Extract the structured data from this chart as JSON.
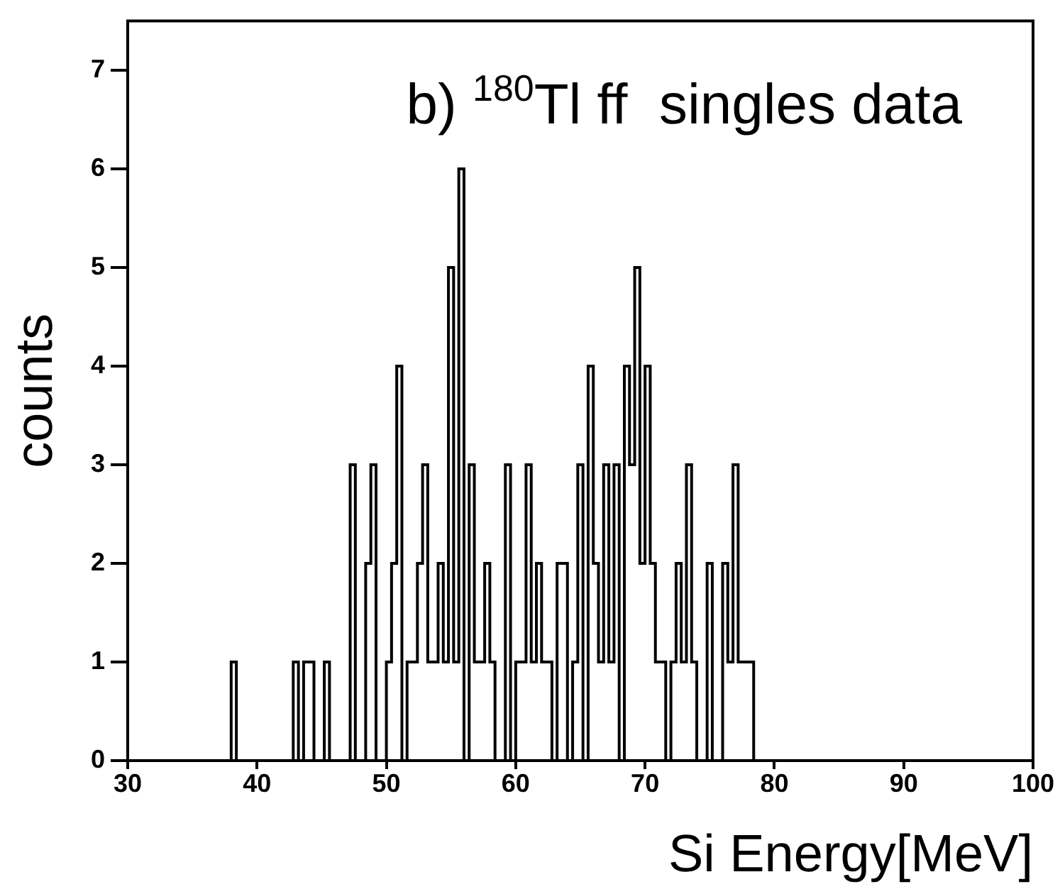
{
  "chart_data": {
    "type": "histogram",
    "title": "b) $^{180}$Tl ff  singles data",
    "xlabel": "Si Energy[MeV]",
    "ylabel": "counts",
    "bins": [
      37.6,
      38,
      38.4,
      38.8,
      39.2,
      39.6,
      40,
      40.4,
      40.8,
      41.2,
      41.6,
      42,
      42.4,
      42.8,
      43.2,
      43.6,
      44,
      44.4,
      44.8,
      45.2,
      45.6,
      46,
      46.4,
      46.8,
      47.2,
      47.6,
      48,
      48.4,
      48.8,
      49.2,
      49.6,
      50,
      50.4,
      50.8,
      51.2,
      51.6,
      52,
      52.4,
      52.8,
      53.2,
      53.6,
      54,
      54.4,
      54.8,
      55.2,
      55.6,
      56,
      56.4,
      56.8,
      57.2,
      57.6,
      58,
      58.4,
      58.8,
      59.2,
      59.6,
      60,
      60.4,
      60.8,
      61.2,
      61.6,
      62,
      62.4,
      62.8,
      63.2,
      63.6,
      64,
      64.4,
      64.8,
      65.2,
      65.6,
      66,
      66.4,
      66.8,
      67.2,
      67.6,
      68,
      68.4,
      68.8,
      69.2,
      69.6,
      70,
      70.4,
      70.8,
      71.2,
      71.6,
      72,
      72.4,
      72.8,
      73.2,
      73.6,
      74,
      74.4,
      74.8,
      75.2,
      75.6,
      76,
      76.4,
      76.8,
      77.2,
      77.6,
      78,
      78.4
    ],
    "values": [
      0,
      1,
      0,
      0,
      0,
      0,
      0,
      0,
      0,
      0,
      0,
      0,
      0,
      1,
      0,
      1,
      1,
      0,
      0,
      1,
      0,
      0,
      0,
      0,
      3,
      0,
      0,
      2,
      3,
      0,
      0,
      1,
      2,
      4,
      0,
      1,
      1,
      2,
      3,
      1,
      1,
      2,
      1,
      5,
      1,
      6,
      0,
      3,
      1,
      1,
      2,
      1,
      0,
      0,
      3,
      0,
      1,
      1,
      3,
      1,
      2,
      1,
      1,
      0,
      2,
      2,
      0,
      1,
      3,
      0,
      4,
      2,
      1,
      3,
      1,
      3,
      0,
      4,
      3,
      5,
      2,
      4,
      2,
      1,
      1,
      0,
      1,
      2,
      1,
      3,
      1,
      0,
      0,
      2,
      0,
      0,
      2,
      1,
      3,
      1,
      1,
      1
    ],
    "color": "#000000",
    "xlim": [
      30,
      100
    ],
    "xticks": [
      30,
      40,
      50,
      60,
      70,
      80,
      90,
      100
    ],
    "ylim": [
      0,
      7.5
    ],
    "yticks": [
      0,
      1,
      2,
      3,
      4,
      5,
      6,
      7
    ]
  }
}
